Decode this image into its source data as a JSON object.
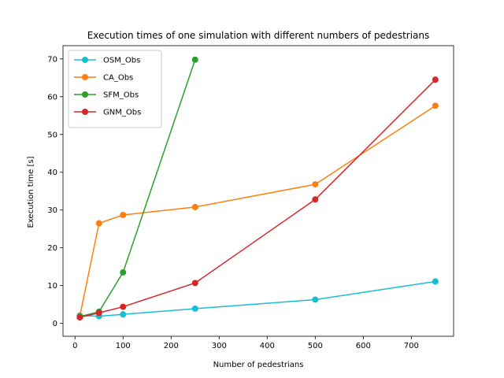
{
  "chart_data": {
    "type": "line",
    "title": "Execution times of one simulation with different numbers of pedestrians",
    "xlabel": "Number of pedestrians",
    "ylabel": "Execution time [s]",
    "xlim": [
      -25,
      788
    ],
    "ylim": [
      -3.4,
      73.5
    ],
    "xticks": [
      0,
      100,
      200,
      300,
      400,
      500,
      600,
      700
    ],
    "yticks": [
      0,
      10,
      20,
      30,
      40,
      50,
      60,
      70
    ],
    "grid": false,
    "legend_position": "upper-left",
    "series": [
      {
        "name": "OSM_Obs",
        "color": "#17becf",
        "x": [
          10,
          50,
          100,
          250,
          500,
          750
        ],
        "y": [
          2.1,
          1.9,
          2.4,
          3.9,
          6.3,
          11.1
        ]
      },
      {
        "name": "CA_Obs",
        "color": "#ff7f0e",
        "x": [
          10,
          50,
          100,
          250,
          500,
          750
        ],
        "y": [
          1.9,
          26.5,
          28.7,
          30.8,
          36.8,
          57.6
        ]
      },
      {
        "name": "SFM_Obs",
        "color": "#2ca02c",
        "x": [
          10,
          50,
          100,
          250
        ],
        "y": [
          1.8,
          3.1,
          13.5,
          69.8
        ]
      },
      {
        "name": "GNM_Obs",
        "color": "#d62728",
        "x": [
          10,
          50,
          100,
          250,
          500,
          750
        ],
        "y": [
          1.6,
          2.8,
          4.4,
          10.7,
          32.8,
          64.5
        ]
      }
    ]
  }
}
